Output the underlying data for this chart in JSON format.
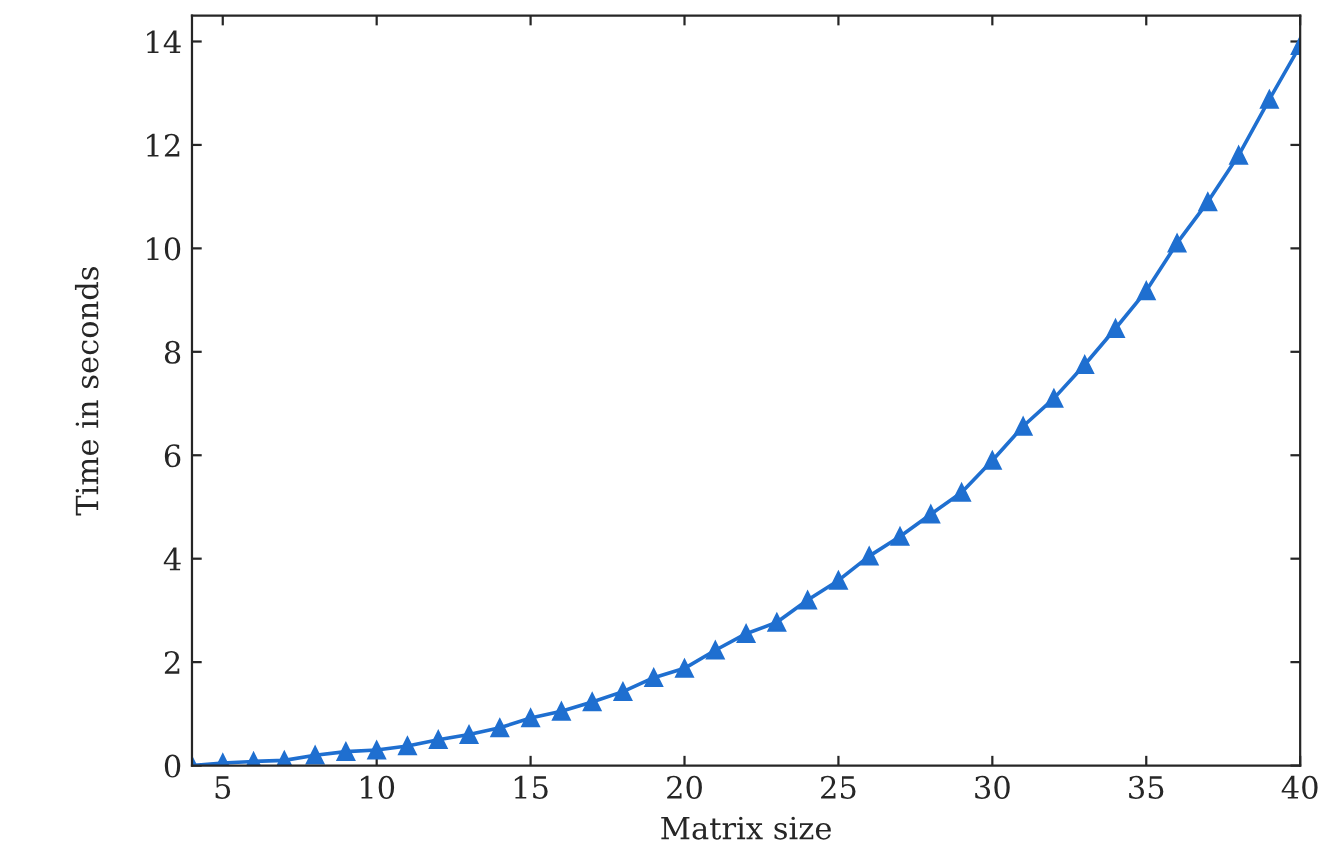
{
  "chart_data": {
    "type": "line",
    "xlabel": "Matrix size",
    "ylabel": "Time in seconds",
    "x": [
      4,
      5,
      6,
      7,
      8,
      9,
      10,
      11,
      12,
      13,
      14,
      15,
      16,
      17,
      18,
      19,
      20,
      21,
      22,
      23,
      24,
      25,
      26,
      27,
      28,
      29,
      30,
      31,
      32,
      33,
      34,
      35,
      36,
      37,
      38,
      39,
      40
    ],
    "series": [
      {
        "color": "#1f6fd0",
        "values": [
          0.0,
          0.05,
          0.08,
          0.1,
          0.2,
          0.27,
          0.3,
          0.38,
          0.5,
          0.6,
          0.73,
          0.92,
          1.05,
          1.23,
          1.43,
          1.7,
          1.88,
          2.23,
          2.55,
          2.77,
          3.2,
          3.58,
          4.05,
          4.43,
          4.86,
          5.28,
          5.9,
          6.56,
          7.1,
          7.75,
          8.45,
          9.18,
          10.1,
          10.9,
          11.8,
          12.88,
          13.92
        ]
      }
    ],
    "xlim": [
      4,
      40
    ],
    "xticks": [
      5,
      10,
      15,
      20,
      25,
      30,
      35,
      40
    ],
    "ylim": [
      0,
      14.5
    ],
    "yticks": [
      0,
      2,
      4,
      6,
      8,
      10,
      12,
      14
    ],
    "marker": "triangle",
    "line_style": "solid",
    "grid": false,
    "legend": false
  }
}
